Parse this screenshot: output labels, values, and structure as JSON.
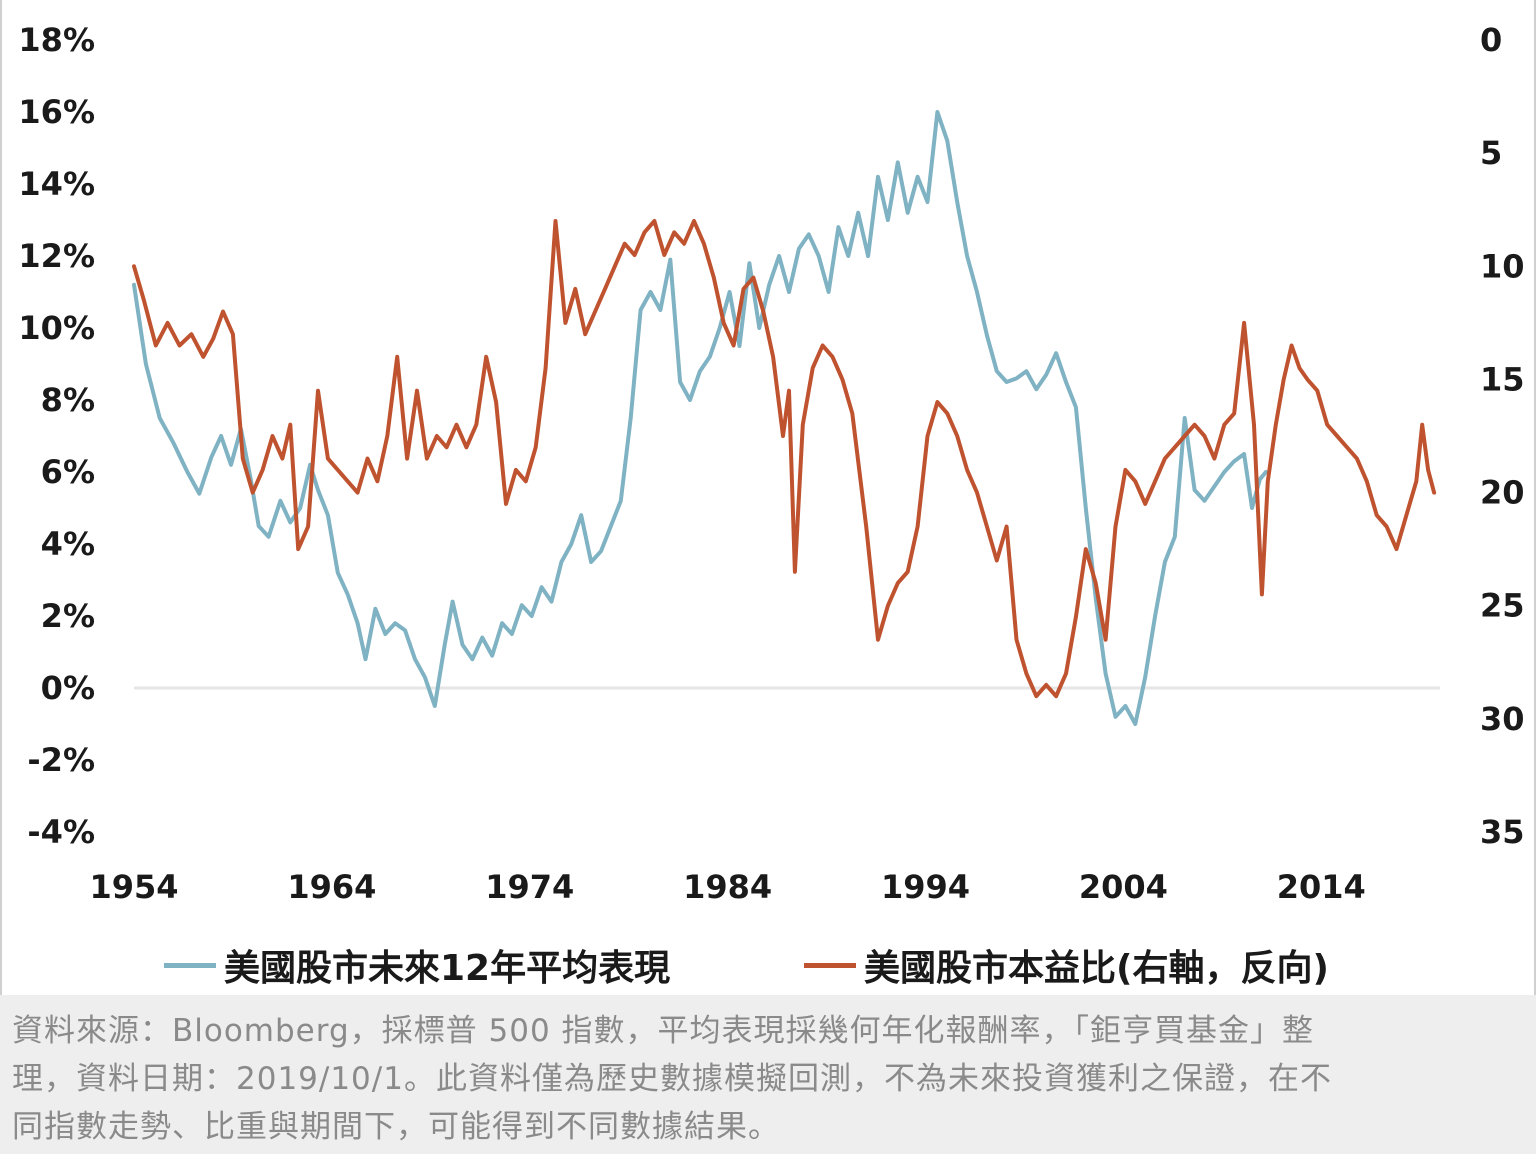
{
  "chart_data": {
    "type": "line",
    "x_ticks": [
      "1954",
      "1964",
      "1974",
      "1984",
      "1994",
      "2004",
      "2014"
    ],
    "xlim": [
      1954,
      2020
    ],
    "y_left": {
      "ticks": [
        "18%",
        "16%",
        "14%",
        "12%",
        "10%",
        "8%",
        "6%",
        "4%",
        "2%",
        "0%",
        "-2%",
        "-4%"
      ],
      "ylim": [
        -4,
        18
      ]
    },
    "y_right": {
      "ticks": [
        "0",
        "5",
        "10",
        "15",
        "20",
        "25",
        "30",
        "35"
      ],
      "ylim": [
        0,
        35
      ],
      "reversed": true
    },
    "series": [
      {
        "name": "美國股市未來12年平均表現",
        "axis": "left",
        "color": "#7fb2c3",
        "points": [
          [
            1954.0,
            11.2
          ],
          [
            1954.6,
            9.0
          ],
          [
            1955.3,
            7.5
          ],
          [
            1956.0,
            6.8
          ],
          [
            1956.7,
            6.0
          ],
          [
            1957.3,
            5.4
          ],
          [
            1957.9,
            6.4
          ],
          [
            1958.4,
            7.0
          ],
          [
            1958.9,
            6.2
          ],
          [
            1959.4,
            7.2
          ],
          [
            1959.9,
            5.8
          ],
          [
            1960.3,
            4.5
          ],
          [
            1960.8,
            4.2
          ],
          [
            1961.4,
            5.2
          ],
          [
            1961.9,
            4.6
          ],
          [
            1962.4,
            5.0
          ],
          [
            1962.9,
            6.2
          ],
          [
            1963.3,
            5.5
          ],
          [
            1963.8,
            4.8
          ],
          [
            1964.3,
            3.2
          ],
          [
            1964.8,
            2.6
          ],
          [
            1965.3,
            1.8
          ],
          [
            1965.7,
            0.8
          ],
          [
            1966.2,
            2.2
          ],
          [
            1966.7,
            1.5
          ],
          [
            1967.2,
            1.8
          ],
          [
            1967.7,
            1.6
          ],
          [
            1968.2,
            0.8
          ],
          [
            1968.7,
            0.3
          ],
          [
            1969.2,
            -0.5
          ],
          [
            1969.7,
            1.2
          ],
          [
            1970.1,
            2.4
          ],
          [
            1970.6,
            1.2
          ],
          [
            1971.1,
            0.8
          ],
          [
            1971.6,
            1.4
          ],
          [
            1972.1,
            0.9
          ],
          [
            1972.6,
            1.8
          ],
          [
            1973.1,
            1.5
          ],
          [
            1973.6,
            2.3
          ],
          [
            1974.1,
            2.0
          ],
          [
            1974.6,
            2.8
          ],
          [
            1975.1,
            2.4
          ],
          [
            1975.6,
            3.5
          ],
          [
            1976.1,
            4.0
          ],
          [
            1976.6,
            4.8
          ],
          [
            1977.1,
            3.5
          ],
          [
            1977.6,
            3.8
          ],
          [
            1978.1,
            4.5
          ],
          [
            1978.6,
            5.2
          ],
          [
            1979.1,
            7.5
          ],
          [
            1979.6,
            10.5
          ],
          [
            1980.1,
            11.0
          ],
          [
            1980.6,
            10.5
          ],
          [
            1981.1,
            11.9
          ],
          [
            1981.6,
            8.5
          ],
          [
            1982.1,
            8.0
          ],
          [
            1982.6,
            8.8
          ],
          [
            1983.1,
            9.2
          ],
          [
            1983.6,
            10.0
          ],
          [
            1984.1,
            11.0
          ],
          [
            1984.6,
            9.5
          ],
          [
            1985.1,
            11.8
          ],
          [
            1985.6,
            10.0
          ],
          [
            1986.1,
            11.2
          ],
          [
            1986.6,
            12.0
          ],
          [
            1987.1,
            11.0
          ],
          [
            1987.6,
            12.2
          ],
          [
            1988.1,
            12.6
          ],
          [
            1988.6,
            12.0
          ],
          [
            1989.1,
            11.0
          ],
          [
            1989.6,
            12.8
          ],
          [
            1990.1,
            12.0
          ],
          [
            1990.6,
            13.2
          ],
          [
            1991.1,
            12.0
          ],
          [
            1991.6,
            14.2
          ],
          [
            1992.1,
            13.0
          ],
          [
            1992.6,
            14.6
          ],
          [
            1993.1,
            13.2
          ],
          [
            1993.6,
            14.2
          ],
          [
            1994.1,
            13.5
          ],
          [
            1994.6,
            16.0
          ],
          [
            1995.1,
            15.2
          ],
          [
            1995.6,
            13.5
          ],
          [
            1996.1,
            12.0
          ],
          [
            1996.6,
            11.0
          ],
          [
            1997.1,
            9.8
          ],
          [
            1997.6,
            8.8
          ],
          [
            1998.1,
            8.5
          ],
          [
            1998.6,
            8.6
          ],
          [
            1999.1,
            8.8
          ],
          [
            1999.6,
            8.3
          ],
          [
            2000.1,
            8.7
          ],
          [
            2000.6,
            9.3
          ],
          [
            2001.1,
            8.5
          ],
          [
            2001.6,
            7.8
          ],
          [
            2002.1,
            5.0
          ],
          [
            2002.6,
            2.5
          ],
          [
            2003.1,
            0.4
          ],
          [
            2003.6,
            -0.8
          ],
          [
            2004.1,
            -0.5
          ],
          [
            2004.6,
            -1.0
          ],
          [
            2005.1,
            0.3
          ],
          [
            2005.6,
            2.0
          ],
          [
            2006.1,
            3.5
          ],
          [
            2006.6,
            4.2
          ],
          [
            2007.1,
            7.5
          ],
          [
            2007.6,
            5.5
          ],
          [
            2008.1,
            5.2
          ],
          [
            2008.6,
            5.6
          ],
          [
            2009.1,
            6.0
          ],
          [
            2009.6,
            6.3
          ],
          [
            2010.1,
            6.5
          ],
          [
            2010.5,
            5.0
          ],
          [
            2010.9,
            5.8
          ],
          [
            2011.2,
            6.0
          ]
        ]
      },
      {
        "name": "美國股市本益比(右軸，反向)",
        "axis": "right",
        "color": "#c0532f",
        "points": [
          [
            1954.0,
            10.0
          ],
          [
            1954.5,
            11.5
          ],
          [
            1955.1,
            13.5
          ],
          [
            1955.7,
            12.5
          ],
          [
            1956.3,
            13.5
          ],
          [
            1956.9,
            13.0
          ],
          [
            1957.5,
            14.0
          ],
          [
            1958.0,
            13.2
          ],
          [
            1958.5,
            12.0
          ],
          [
            1959.0,
            13.0
          ],
          [
            1959.5,
            18.5
          ],
          [
            1960.0,
            20.0
          ],
          [
            1960.5,
            19.0
          ],
          [
            1961.0,
            17.5
          ],
          [
            1961.5,
            18.5
          ],
          [
            1961.9,
            17.0
          ],
          [
            1962.3,
            22.5
          ],
          [
            1962.8,
            21.5
          ],
          [
            1963.3,
            15.5
          ],
          [
            1963.8,
            18.5
          ],
          [
            1964.3,
            19.0
          ],
          [
            1964.8,
            19.5
          ],
          [
            1965.3,
            20.0
          ],
          [
            1965.8,
            18.5
          ],
          [
            1966.3,
            19.5
          ],
          [
            1966.8,
            17.5
          ],
          [
            1967.3,
            14.0
          ],
          [
            1967.8,
            18.5
          ],
          [
            1968.3,
            15.5
          ],
          [
            1968.8,
            18.5
          ],
          [
            1969.3,
            17.5
          ],
          [
            1969.8,
            18.0
          ],
          [
            1970.3,
            17.0
          ],
          [
            1970.8,
            18.0
          ],
          [
            1971.3,
            17.0
          ],
          [
            1971.8,
            14.0
          ],
          [
            1972.3,
            16.0
          ],
          [
            1972.8,
            20.5
          ],
          [
            1973.3,
            19.0
          ],
          [
            1973.8,
            19.5
          ],
          [
            1974.3,
            18.0
          ],
          [
            1974.8,
            14.5
          ],
          [
            1975.3,
            8.0
          ],
          [
            1975.8,
            12.5
          ],
          [
            1976.3,
            11.0
          ],
          [
            1976.8,
            13.0
          ],
          [
            1977.3,
            12.0
          ],
          [
            1977.8,
            11.0
          ],
          [
            1978.3,
            10.0
          ],
          [
            1978.8,
            9.0
          ],
          [
            1979.3,
            9.5
          ],
          [
            1979.8,
            8.5
          ],
          [
            1980.3,
            8.0
          ],
          [
            1980.8,
            9.5
          ],
          [
            1981.3,
            8.5
          ],
          [
            1981.8,
            9.0
          ],
          [
            1982.3,
            8.0
          ],
          [
            1982.8,
            9.0
          ],
          [
            1983.3,
            10.5
          ],
          [
            1983.8,
            12.5
          ],
          [
            1984.3,
            13.5
          ],
          [
            1984.8,
            11.0
          ],
          [
            1985.3,
            10.5
          ],
          [
            1985.8,
            12.0
          ],
          [
            1986.3,
            14.0
          ],
          [
            1986.8,
            17.5
          ],
          [
            1987.1,
            15.5
          ],
          [
            1987.4,
            23.5
          ],
          [
            1987.8,
            17.0
          ],
          [
            1988.3,
            14.5
          ],
          [
            1988.8,
            13.5
          ],
          [
            1989.3,
            14.0
          ],
          [
            1989.8,
            15.0
          ],
          [
            1990.3,
            16.5
          ],
          [
            1991.0,
            21.5
          ],
          [
            1991.6,
            26.5
          ],
          [
            1992.1,
            25.0
          ],
          [
            1992.6,
            24.0
          ],
          [
            1993.1,
            23.5
          ],
          [
            1993.6,
            21.5
          ],
          [
            1994.1,
            17.5
          ],
          [
            1994.6,
            16.0
          ],
          [
            1995.1,
            16.5
          ],
          [
            1995.6,
            17.5
          ],
          [
            1996.1,
            19.0
          ],
          [
            1996.6,
            20.0
          ],
          [
            1997.1,
            21.5
          ],
          [
            1997.6,
            23.0
          ],
          [
            1998.1,
            21.5
          ],
          [
            1998.6,
            26.5
          ],
          [
            1999.1,
            28.0
          ],
          [
            1999.6,
            29.0
          ],
          [
            2000.1,
            28.5
          ],
          [
            2000.6,
            29.0
          ],
          [
            2001.1,
            28.0
          ],
          [
            2001.6,
            25.5
          ],
          [
            2002.1,
            22.5
          ],
          [
            2002.6,
            24.0
          ],
          [
            2003.1,
            26.5
          ],
          [
            2003.6,
            21.5
          ],
          [
            2004.1,
            19.0
          ],
          [
            2004.6,
            19.5
          ],
          [
            2005.1,
            20.5
          ],
          [
            2005.6,
            19.5
          ],
          [
            2006.1,
            18.5
          ],
          [
            2006.6,
            18.0
          ],
          [
            2007.1,
            17.5
          ],
          [
            2007.6,
            17.0
          ],
          [
            2008.1,
            17.5
          ],
          [
            2008.6,
            18.5
          ],
          [
            2009.1,
            17.0
          ],
          [
            2009.6,
            16.5
          ],
          [
            2010.1,
            12.5
          ],
          [
            2010.6,
            17.0
          ],
          [
            2011.0,
            24.5
          ],
          [
            2011.3,
            19.5
          ],
          [
            2011.7,
            17.0
          ],
          [
            2012.1,
            15.0
          ],
          [
            2012.5,
            13.5
          ],
          [
            2012.9,
            14.5
          ],
          [
            2013.3,
            15.0
          ],
          [
            2013.8,
            15.5
          ],
          [
            2014.3,
            17.0
          ],
          [
            2014.8,
            17.5
          ],
          [
            2015.3,
            18.0
          ],
          [
            2015.8,
            18.5
          ],
          [
            2016.3,
            19.5
          ],
          [
            2016.8,
            21.0
          ],
          [
            2017.3,
            21.5
          ],
          [
            2017.8,
            22.5
          ],
          [
            2018.3,
            21.0
          ],
          [
            2018.8,
            19.5
          ],
          [
            2019.1,
            17.0
          ],
          [
            2019.4,
            19.0
          ],
          [
            2019.7,
            20.0
          ]
        ]
      }
    ],
    "baseline": {
      "value": 0,
      "axis": "left",
      "color": "#e6e6e6"
    }
  },
  "legend": [
    {
      "label": "美國股市未來12年平均表現",
      "color": "#7fb2c3"
    },
    {
      "label": "美國股市本益比(右軸，反向)",
      "color": "#c0532f"
    }
  ],
  "footnote": {
    "line1": "資料來源：Bloomberg，採標普 500 指數，平均表現採幾何年化報酬率，「鉅亨買基金」整",
    "line2": "理，資料日期：2019/10/1。此資料僅為歷史數據模擬回測，不為未來投資獲利之保證，在不",
    "line3": "同指數走勢、比重與期間下，可能得到不同數據結果。"
  }
}
